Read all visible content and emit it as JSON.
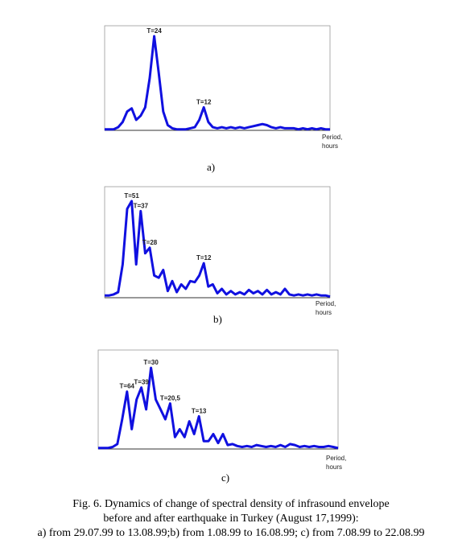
{
  "chart_data": [
    {
      "type": "line",
      "panel_label": "a)",
      "x_label_lines": [
        "Period,",
        "hours"
      ],
      "color": "#1010e0",
      "xlim": [
        0,
        100
      ],
      "ylim": [
        0,
        100
      ],
      "x": [
        0,
        2,
        4,
        6,
        8,
        10,
        12,
        14,
        16,
        18,
        20,
        22,
        24,
        26,
        28,
        30,
        32,
        34,
        36,
        38,
        40,
        42,
        44,
        46,
        48,
        50,
        52,
        54,
        56,
        58,
        60,
        62,
        64,
        66,
        68,
        70,
        72,
        74,
        76,
        78,
        80,
        82,
        84,
        86,
        88,
        90,
        92,
        94,
        96,
        98,
        100
      ],
      "values": [
        1,
        1,
        1,
        3,
        8,
        18,
        21,
        10,
        14,
        22,
        50,
        90,
        55,
        18,
        5,
        2,
        1,
        1,
        1,
        2,
        3,
        10,
        22,
        8,
        3,
        2,
        3,
        2,
        3,
        2,
        3,
        2,
        3,
        4,
        5,
        6,
        5,
        3,
        2,
        3,
        2,
        2,
        2,
        1,
        2,
        1,
        2,
        1,
        2,
        1,
        1
      ],
      "annotations": [
        {
          "text": "T=24",
          "x": 22,
          "y": 90
        },
        {
          "text": "T=12",
          "x": 44,
          "y": 22
        }
      ]
    },
    {
      "type": "line",
      "panel_label": "b)",
      "x_label_lines": [
        "Period,",
        "hours"
      ],
      "color": "#1010e0",
      "xlim": [
        0,
        100
      ],
      "ylim": [
        0,
        100
      ],
      "x": [
        0,
        2,
        4,
        6,
        8,
        10,
        12,
        14,
        16,
        18,
        20,
        22,
        24,
        26,
        28,
        30,
        32,
        34,
        36,
        38,
        40,
        42,
        44,
        46,
        48,
        50,
        52,
        54,
        56,
        58,
        60,
        62,
        64,
        66,
        68,
        70,
        72,
        74,
        76,
        78,
        80,
        82,
        84,
        86,
        88,
        90,
        92,
        94,
        96,
        98,
        100
      ],
      "values": [
        2,
        2,
        3,
        5,
        30,
        80,
        87,
        30,
        78,
        40,
        45,
        20,
        18,
        25,
        6,
        15,
        5,
        12,
        8,
        15,
        14,
        20,
        31,
        10,
        12,
        4,
        8,
        3,
        6,
        3,
        5,
        3,
        7,
        4,
        6,
        3,
        7,
        3,
        5,
        3,
        8,
        3,
        2,
        3,
        2,
        3,
        2,
        3,
        2,
        2,
        1
      ],
      "annotations": [
        {
          "text": "T=51",
          "x": 12,
          "y": 87
        },
        {
          "text": "T=37",
          "x": 16,
          "y": 78
        },
        {
          "text": "T=28",
          "x": 20,
          "y": 45
        },
        {
          "text": "T=12",
          "x": 44,
          "y": 31
        }
      ]
    },
    {
      "type": "line",
      "panel_label": "c)",
      "x_label_lines": [
        "Period,",
        "hours"
      ],
      "color": "#1010e0",
      "xlim": [
        0,
        100
      ],
      "ylim": [
        0,
        100
      ],
      "x": [
        0,
        2,
        4,
        6,
        8,
        10,
        12,
        14,
        16,
        18,
        20,
        22,
        24,
        26,
        28,
        30,
        32,
        34,
        36,
        38,
        40,
        42,
        44,
        46,
        48,
        50,
        52,
        54,
        56,
        58,
        60,
        62,
        64,
        66,
        68,
        70,
        72,
        74,
        76,
        78,
        80,
        82,
        84,
        86,
        88,
        90,
        92,
        94,
        96,
        98,
        100
      ],
      "values": [
        1,
        1,
        1,
        2,
        5,
        30,
        58,
        20,
        50,
        62,
        40,
        82,
        50,
        40,
        30,
        46,
        12,
        20,
        12,
        28,
        15,
        33,
        8,
        8,
        15,
        6,
        15,
        4,
        5,
        3,
        2,
        3,
        2,
        4,
        3,
        2,
        3,
        2,
        4,
        2,
        5,
        4,
        2,
        3,
        2,
        3,
        2,
        2,
        3,
        2,
        1
      ],
      "annotations": [
        {
          "text": "T=64",
          "x": 12,
          "y": 58
        },
        {
          "text": "T=39",
          "x": 18,
          "y": 62
        },
        {
          "text": "T=30",
          "x": 22,
          "y": 82
        },
        {
          "text": "T=20,5",
          "x": 30,
          "y": 46
        },
        {
          "text": "T=13",
          "x": 42,
          "y": 33
        }
      ]
    }
  ],
  "caption": [
    "Fig. 6. Dynamics of change of spectral density of infrasound envelope",
    "before and after earthquake in Turkey (August 17,1999):",
    "a) from 29.07.99 to 13.08.99;b) from 1.08.99 to 16.08.99; c) from 7.08.99 to 22.08.99"
  ]
}
